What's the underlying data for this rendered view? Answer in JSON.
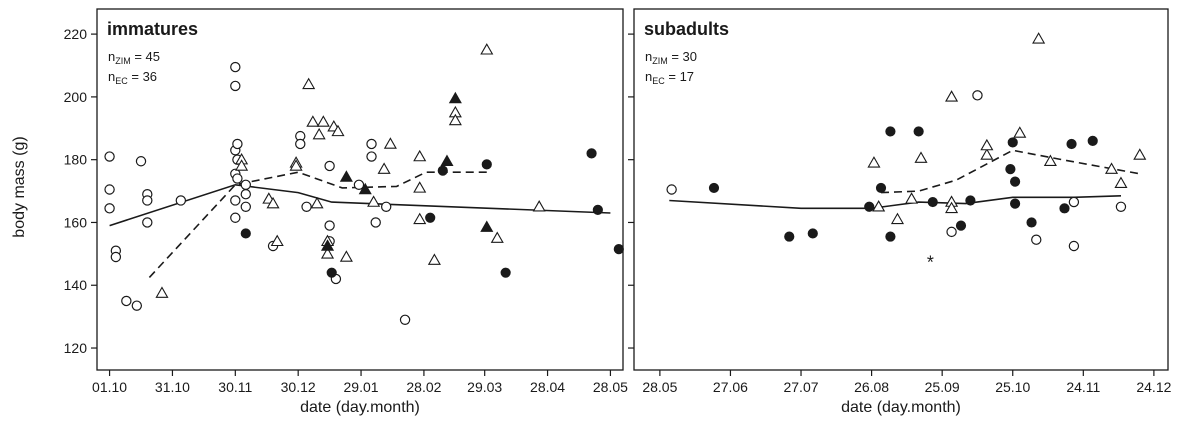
{
  "figure": {
    "ylabel": "body mass (g)"
  },
  "chart_data": [
    {
      "type": "scatter",
      "panel_title": "immatures",
      "counts": [
        {
          "prefix": "n",
          "sub": "ZIM",
          "suffix": " = 45"
        },
        {
          "prefix": "n",
          "sub": "EC",
          "suffix": " = 36"
        }
      ],
      "xlabel": "date (day.month)",
      "ylabel": "body mass (g)",
      "x_ticks": [
        "01.10",
        "31.10",
        "30.11",
        "30.12",
        "29.01",
        "28.02",
        "29.03",
        "28.04",
        "28.05"
      ],
      "x_tick_dates": [
        "2000-10-01",
        "2000-10-31",
        "2000-11-30",
        "2000-12-30",
        "2001-01-29",
        "2001-02-28",
        "2001-03-29",
        "2001-04-28",
        "2001-05-28"
      ],
      "xlim": [
        "2000-09-25",
        "2001-06-03"
      ],
      "ylim": [
        113,
        228
      ],
      "y_ticks": [
        120,
        140,
        160,
        180,
        200,
        220
      ],
      "grid": false,
      "legend": "none",
      "series": [
        {
          "marker": "open-circle",
          "points": [
            [
              "2000-10-01",
              181
            ],
            [
              "2000-10-01",
              170.5
            ],
            [
              "2000-10-01",
              164.5
            ],
            [
              "2000-10-04",
              151
            ],
            [
              "2000-10-04",
              149
            ],
            [
              "2000-10-09",
              135
            ],
            [
              "2000-10-14",
              133.5
            ],
            [
              "2000-10-16",
              179.5
            ],
            [
              "2000-10-19",
              169
            ],
            [
              "2000-10-19",
              167
            ],
            [
              "2000-10-19",
              160
            ],
            [
              "2000-11-04",
              167
            ],
            [
              "2000-11-30",
              209.5
            ],
            [
              "2000-11-30",
              203.5
            ],
            [
              "2000-11-30",
              183
            ],
            [
              "2000-11-30",
              175.5
            ],
            [
              "2000-11-30",
              167
            ],
            [
              "2000-11-30",
              161.5
            ],
            [
              "2000-12-01",
              185
            ],
            [
              "2000-12-01",
              180
            ],
            [
              "2000-12-01",
              174
            ],
            [
              "2000-12-05",
              172
            ],
            [
              "2000-12-05",
              169
            ],
            [
              "2000-12-05",
              165
            ],
            [
              "2000-12-18",
              152.5
            ],
            [
              "2000-12-31",
              187.5
            ],
            [
              "2000-12-31",
              185
            ],
            [
              "2001-01-03",
              165
            ],
            [
              "2001-01-14",
              178
            ],
            [
              "2001-01-14",
              159
            ],
            [
              "2001-01-14",
              154
            ],
            [
              "2001-01-17",
              142
            ],
            [
              "2001-01-28",
              172
            ],
            [
              "2001-02-03",
              185
            ],
            [
              "2001-02-03",
              181
            ],
            [
              "2001-02-05",
              160
            ],
            [
              "2001-02-10",
              165
            ],
            [
              "2001-02-19",
              129
            ]
          ]
        },
        {
          "marker": "open-triangle",
          "points": [
            [
              "2000-10-26",
              137.5
            ],
            [
              "2000-12-03",
              180
            ],
            [
              "2000-12-03",
              178
            ],
            [
              "2000-12-16",
              167.5
            ],
            [
              "2000-12-18",
              166
            ],
            [
              "2000-12-20",
              154
            ],
            [
              "2000-12-29",
              179
            ],
            [
              "2000-12-29",
              178
            ],
            [
              "2001-01-04",
              204
            ],
            [
              "2001-01-06",
              192
            ],
            [
              "2001-01-08",
              166
            ],
            [
              "2001-01-09",
              188
            ],
            [
              "2001-01-11",
              192
            ],
            [
              "2001-01-13",
              154
            ],
            [
              "2001-01-13",
              150
            ],
            [
              "2001-01-16",
              190.5
            ],
            [
              "2001-01-18",
              189
            ],
            [
              "2001-01-22",
              149
            ],
            [
              "2001-02-04",
              166.5
            ],
            [
              "2001-02-09",
              177
            ],
            [
              "2001-02-12",
              185
            ],
            [
              "2001-02-26",
              181
            ],
            [
              "2001-02-26",
              171
            ],
            [
              "2001-02-26",
              161
            ],
            [
              "2001-03-05",
              148
            ],
            [
              "2001-03-15",
              195
            ],
            [
              "2001-03-15",
              192.5
            ],
            [
              "2001-03-30",
              215
            ],
            [
              "2001-04-04",
              155
            ],
            [
              "2001-04-24",
              165
            ]
          ]
        },
        {
          "marker": "filled-circle",
          "points": [
            [
              "2000-12-05",
              156.5
            ],
            [
              "2001-01-15",
              144
            ],
            [
              "2001-03-03",
              161.5
            ],
            [
              "2001-03-09",
              176.5
            ],
            [
              "2001-03-30",
              178.5
            ],
            [
              "2001-04-08",
              144
            ],
            [
              "2001-05-19",
              182
            ],
            [
              "2001-05-22",
              164
            ],
            [
              "2001-06-01",
              151.5
            ]
          ]
        },
        {
          "marker": "filled-triangle",
          "points": [
            [
              "2001-01-13",
              152.5
            ],
            [
              "2001-01-22",
              174.5
            ],
            [
              "2001-01-31",
              170.5
            ],
            [
              "2001-03-11",
              179.5
            ],
            [
              "2001-03-15",
              199.5
            ],
            [
              "2001-03-30",
              158.5
            ]
          ]
        }
      ],
      "lines": [
        {
          "style": "solid",
          "points": [
            [
              "2000-10-01",
              159
            ],
            [
              "2000-11-30",
              172
            ],
            [
              "2000-12-30",
              169.5
            ],
            [
              "2001-01-15",
              166.5
            ],
            [
              "2001-05-28",
              163
            ]
          ]
        },
        {
          "style": "dashed",
          "points": [
            [
              "2000-10-20",
              142.5
            ],
            [
              "2000-11-30",
              172
            ],
            [
              "2000-12-30",
              176
            ],
            [
              "2001-01-20",
              171
            ],
            [
              "2001-02-15",
              171.5
            ],
            [
              "2001-03-01",
              176
            ],
            [
              "2001-03-30",
              176
            ]
          ]
        }
      ]
    },
    {
      "type": "scatter",
      "panel_title": "subadults",
      "counts": [
        {
          "prefix": "n",
          "sub": "ZIM",
          "suffix": " = 30"
        },
        {
          "prefix": "n",
          "sub": "EC",
          "suffix": " = 17"
        }
      ],
      "xlabel": "date (day.month)",
      "ylabel": "",
      "x_ticks": [
        "28.05",
        "27.06",
        "27.07",
        "26.08",
        "25.09",
        "25.10",
        "24.11",
        "24.12"
      ],
      "x_tick_dates": [
        "2001-05-28",
        "2001-06-27",
        "2001-07-27",
        "2001-08-26",
        "2001-09-25",
        "2001-10-25",
        "2001-11-24",
        "2001-12-24"
      ],
      "xlim": [
        "2001-05-17",
        "2001-12-30"
      ],
      "ylim": [
        113,
        228
      ],
      "y_ticks": [
        120,
        140,
        160,
        180,
        200,
        220
      ],
      "grid": false,
      "legend": "none",
      "series": [
        {
          "marker": "open-circle",
          "points": [
            [
              "2001-06-02",
              170.5
            ],
            [
              "2001-09-29",
              157
            ],
            [
              "2001-10-10",
              200.5
            ],
            [
              "2001-11-04",
              154.5
            ],
            [
              "2001-11-20",
              152.5
            ],
            [
              "2001-11-20",
              166.5
            ],
            [
              "2001-12-10",
              165
            ]
          ]
        },
        {
          "marker": "open-triangle",
          "points": [
            [
              "2001-08-27",
              179
            ],
            [
              "2001-08-29",
              165
            ],
            [
              "2001-09-06",
              161
            ],
            [
              "2001-09-12",
              167.5
            ],
            [
              "2001-09-16",
              180.5
            ],
            [
              "2001-09-29",
              200
            ],
            [
              "2001-09-29",
              166.5
            ],
            [
              "2001-09-29",
              164.5
            ],
            [
              "2001-10-14",
              181.5
            ],
            [
              "2001-10-14",
              184.5
            ],
            [
              "2001-10-28",
              188.5
            ],
            [
              "2001-11-05",
              218.5
            ],
            [
              "2001-11-10",
              179.5
            ],
            [
              "2001-12-06",
              177
            ],
            [
              "2001-12-10",
              172.5
            ],
            [
              "2001-12-18",
              181.5
            ]
          ]
        },
        {
          "marker": "filled-circle",
          "points": [
            [
              "2001-06-20",
              171
            ],
            [
              "2001-07-22",
              155.5
            ],
            [
              "2001-08-01",
              156.5
            ],
            [
              "2001-08-25",
              165
            ],
            [
              "2001-08-30",
              171
            ],
            [
              "2001-09-03",
              189
            ],
            [
              "2001-09-03",
              155.5
            ],
            [
              "2001-09-15",
              189
            ],
            [
              "2001-09-21",
              166.5
            ],
            [
              "2001-10-03",
              159
            ],
            [
              "2001-10-07",
              167
            ],
            [
              "2001-10-24",
              177
            ],
            [
              "2001-10-25",
              185.5
            ],
            [
              "2001-10-26",
              173
            ],
            [
              "2001-10-26",
              166
            ],
            [
              "2001-11-02",
              160
            ],
            [
              "2001-11-16",
              164.5
            ],
            [
              "2001-11-19",
              185
            ],
            [
              "2001-11-28",
              186
            ]
          ]
        },
        {
          "marker": "asterisk",
          "points": [
            [
              "2001-09-20",
              147.5
            ]
          ]
        }
      ],
      "lines": [
        {
          "style": "solid",
          "points": [
            [
              "2001-06-01",
              167
            ],
            [
              "2001-07-27",
              164.5
            ],
            [
              "2001-08-26",
              164.5
            ],
            [
              "2001-09-15",
              166.5
            ],
            [
              "2001-10-05",
              166
            ],
            [
              "2001-10-25",
              168
            ],
            [
              "2001-11-20",
              168
            ],
            [
              "2001-12-10",
              168.5
            ]
          ]
        },
        {
          "style": "dashed",
          "points": [
            [
              "2001-08-30",
              169.5
            ],
            [
              "2001-09-15",
              170
            ],
            [
              "2001-10-01",
              173.5
            ],
            [
              "2001-10-25",
              183
            ],
            [
              "2001-11-15",
              180
            ],
            [
              "2001-12-18",
              175.5
            ]
          ]
        }
      ]
    }
  ]
}
